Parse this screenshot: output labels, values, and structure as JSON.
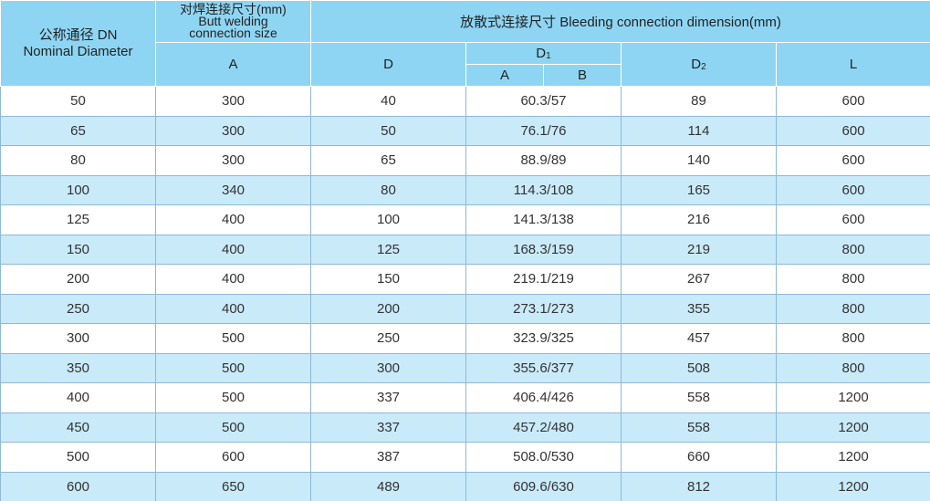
{
  "header": {
    "dn": [
      "公称通径 DN",
      "Nominal Diameter"
    ],
    "butt": [
      "对焊连接尺寸(mm)",
      "Butt welding",
      "connection size"
    ],
    "bleeding": "放散式连接尺寸 Bleeding connection dimension(mm)",
    "a": "A",
    "d": "D",
    "d1": {
      "main": "D",
      "sub": "1"
    },
    "d1a": "A",
    "d1b": "B",
    "d2": {
      "main": "D",
      "sub": "2"
    },
    "l": "L"
  },
  "table": {
    "rows": [
      [
        50,
        300,
        40,
        "60.3/57",
        89,
        600
      ],
      [
        65,
        300,
        50,
        "76.1/76",
        114,
        600
      ],
      [
        80,
        300,
        65,
        "88.9/89",
        140,
        600
      ],
      [
        100,
        340,
        80,
        "114.3/108",
        165,
        600
      ],
      [
        125,
        400,
        100,
        "141.3/138",
        216,
        600
      ],
      [
        150,
        400,
        125,
        "168.3/159",
        219,
        800
      ],
      [
        200,
        400,
        150,
        "219.1/219",
        267,
        800
      ],
      [
        250,
        400,
        200,
        "273.1/273",
        355,
        800
      ],
      [
        300,
        500,
        250,
        "323.9/325",
        457,
        800
      ],
      [
        350,
        500,
        300,
        "355.6/377",
        508,
        800
      ],
      [
        400,
        500,
        337,
        "406.4/426",
        558,
        1200
      ],
      [
        450,
        500,
        337,
        "457.2/480",
        558,
        1200
      ],
      [
        500,
        600,
        387,
        "508.0/530",
        660,
        1200
      ],
      [
        600,
        650,
        489,
        "609.6/630",
        812,
        1200
      ]
    ]
  }
}
